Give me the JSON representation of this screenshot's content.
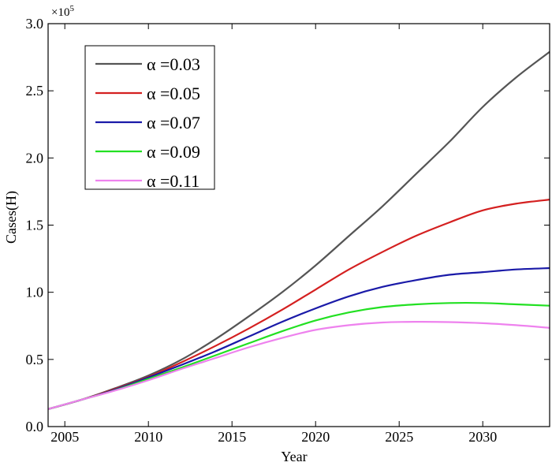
{
  "chart_data": {
    "type": "line",
    "xlabel": "Year",
    "ylabel": "Cases(H)",
    "y_multiplier": "×10",
    "y_multiplier_exp": "5",
    "xlim": [
      2004,
      2034
    ],
    "ylim": [
      0,
      3.0
    ],
    "x_ticks": [
      "2005",
      "2010",
      "2015",
      "2020",
      "2025",
      "2030"
    ],
    "y_ticks": [
      "0.0",
      "0.5",
      "1.0",
      "1.5",
      "2.0",
      "2.5",
      "3.0"
    ],
    "grid": false,
    "legend_position": "top-left",
    "x": [
      2004,
      2006,
      2008,
      2010,
      2012,
      2014,
      2016,
      2018,
      2020,
      2022,
      2024,
      2026,
      2028,
      2030,
      2032,
      2034
    ],
    "series": [
      {
        "name": "α =0.03",
        "color": "#555555",
        "values": [
          0.13,
          0.2,
          0.285,
          0.38,
          0.5,
          0.65,
          0.82,
          1.0,
          1.2,
          1.42,
          1.64,
          1.88,
          2.12,
          2.38,
          2.6,
          2.79
        ]
      },
      {
        "name": "α =0.05",
        "color": "#d42020",
        "values": [
          0.13,
          0.2,
          0.28,
          0.37,
          0.48,
          0.6,
          0.73,
          0.87,
          1.02,
          1.17,
          1.3,
          1.42,
          1.52,
          1.61,
          1.66,
          1.69
        ]
      },
      {
        "name": "α =0.07",
        "color": "#1a1aa8",
        "values": [
          0.13,
          0.2,
          0.275,
          0.365,
          0.46,
          0.56,
          0.67,
          0.78,
          0.88,
          0.97,
          1.04,
          1.09,
          1.13,
          1.15,
          1.17,
          1.18
        ]
      },
      {
        "name": "α =0.09",
        "color": "#22e022",
        "values": [
          0.13,
          0.2,
          0.27,
          0.355,
          0.44,
          0.53,
          0.62,
          0.71,
          0.79,
          0.85,
          0.89,
          0.91,
          0.92,
          0.92,
          0.91,
          0.9
        ]
      },
      {
        "name": "α =0.11",
        "color": "#ee82ee",
        "values": [
          0.13,
          0.2,
          0.268,
          0.345,
          0.43,
          0.51,
          0.59,
          0.66,
          0.72,
          0.755,
          0.775,
          0.78,
          0.778,
          0.77,
          0.755,
          0.735
        ]
      }
    ]
  }
}
